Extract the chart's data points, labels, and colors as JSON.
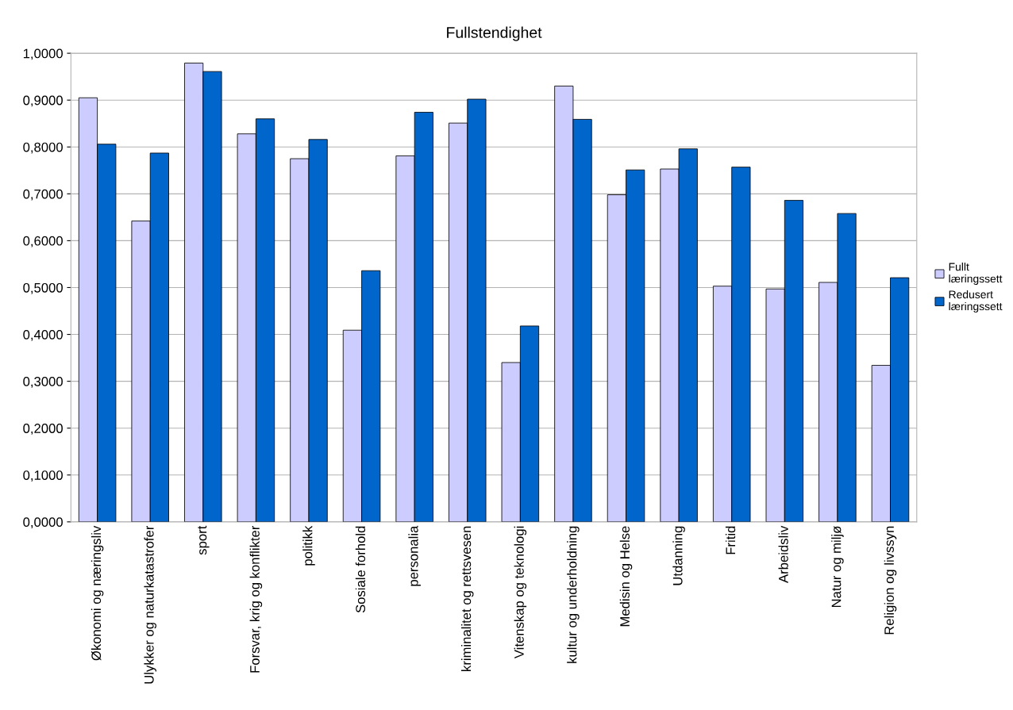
{
  "chart_data": {
    "type": "bar",
    "title": "Fullstendighet",
    "categories": [
      "Økonomi og næringsliv",
      "Ulykker og naturkatastrofer",
      "sport",
      "Forsvar, krig og konflikter",
      "politikk",
      "Sosiale forhold",
      "personalia",
      "kriminalitet og rettsvesen",
      "Vitenskap og teknologi",
      "kultur og underholdning",
      "Medisin og Helse",
      "Utdanning",
      "Fritid",
      "Arbeidsliv",
      "Natur og miljø",
      "Religion og livssyn"
    ],
    "series": [
      {
        "name": "Fullt læringssett",
        "color": "#ccccff",
        "values": [
          0.905,
          0.642,
          0.979,
          0.828,
          0.775,
          0.409,
          0.781,
          0.851,
          0.34,
          0.93,
          0.698,
          0.753,
          0.503,
          0.497,
          0.511,
          0.334
        ]
      },
      {
        "name": "Redusert læringssett",
        "color": "#0066cc",
        "values": [
          0.806,
          0.787,
          0.961,
          0.86,
          0.816,
          0.536,
          0.874,
          0.902,
          0.418,
          0.859,
          0.751,
          0.796,
          0.757,
          0.686,
          0.658,
          0.521
        ]
      }
    ],
    "ylim": [
      0,
      1
    ],
    "yticks": [
      {
        "value": 0,
        "label": "0,0000"
      },
      {
        "value": 0.1,
        "label": "0,1000"
      },
      {
        "value": 0.2,
        "label": "0,2000"
      },
      {
        "value": 0.3,
        "label": "0,3000"
      },
      {
        "value": 0.4,
        "label": "0,4000"
      },
      {
        "value": 0.5,
        "label": "0,5000"
      },
      {
        "value": 0.6,
        "label": "0,6000"
      },
      {
        "value": 0.7,
        "label": "0,7000"
      },
      {
        "value": 0.8,
        "label": "0,8000"
      },
      {
        "value": 0.9,
        "label": "0,9000"
      },
      {
        "value": 1,
        "label": "1,0000"
      }
    ],
    "grid": "y",
    "legend": "right"
  }
}
